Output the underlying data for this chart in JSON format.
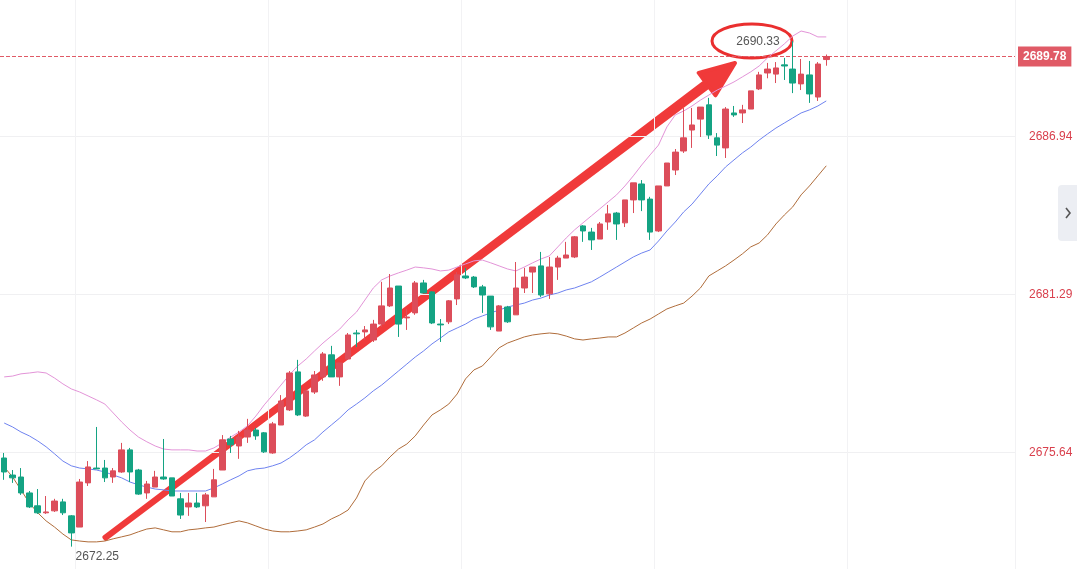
{
  "chart_data": {
    "type": "candlestick",
    "categories": [
      null,
      null,
      null,
      null,
      null,
      null,
      null,
      null,
      null,
      null,
      null,
      null,
      null,
      null,
      null,
      null,
      null,
      null,
      null,
      null,
      null,
      null,
      null,
      null,
      null,
      null,
      null,
      null,
      null,
      null,
      null,
      null,
      null,
      null,
      null,
      null,
      null,
      null,
      null,
      null,
      null,
      null,
      null,
      null,
      null,
      null,
      null,
      null,
      null,
      null,
      null,
      null,
      null,
      null,
      null,
      null,
      null,
      null,
      null,
      null,
      null,
      null,
      null,
      null,
      null,
      null,
      null,
      null,
      null,
      null,
      null,
      null,
      null,
      null,
      null,
      null,
      null,
      null,
      null,
      null,
      null,
      null,
      null,
      null,
      null,
      null,
      null,
      null,
      null,
      null,
      null,
      null,
      null,
      null,
      null,
      null,
      null,
      null,
      null
    ],
    "ohlc": [
      [
        2675.42,
        2675.6,
        2674.64,
        2674.92
      ],
      [
        2674.81,
        2674.99,
        2674.53,
        2674.71
      ],
      [
        2674.74,
        2675.06,
        2674.1,
        2674.17
      ],
      [
        2674.17,
        2674.24,
        2673.63,
        2673.67
      ],
      [
        2673.71,
        2674.31,
        2673.42,
        2673.46
      ],
      [
        2673.46,
        2674.06,
        2673.42,
        2673.49
      ],
      [
        2673.53,
        2673.96,
        2673.49,
        2673.88
      ],
      [
        2673.85,
        2673.96,
        2673.38,
        2673.46
      ],
      [
        2673.35,
        2673.38,
        2672.25,
        2672.74
      ],
      [
        2672.95,
        2674.67,
        2672.95,
        2674.56
      ],
      [
        2674.53,
        2675.31,
        2674.42,
        2675.1
      ],
      [
        2675.06,
        2676.53,
        2675.03,
        2675.03
      ],
      [
        2675.06,
        2675.35,
        2674.56,
        2674.71
      ],
      [
        2674.74,
        2675.06,
        2674.53,
        2674.96
      ],
      [
        2674.92,
        2675.96,
        2674.89,
        2675.71
      ],
      [
        2675.71,
        2675.78,
        2674.56,
        2674.92
      ],
      [
        2674.99,
        2675.03,
        2674.1,
        2674.13
      ],
      [
        2674.17,
        2674.6,
        2673.96,
        2674.49
      ],
      [
        2674.38,
        2674.96,
        2674.38,
        2674.74
      ],
      [
        2674.74,
        2676.1,
        2674.64,
        2674.67
      ],
      [
        2674.71,
        2674.71,
        2674.06,
        2674.06
      ],
      [
        2673.96,
        2674.17,
        2673.24,
        2673.38
      ],
      [
        2673.67,
        2674.17,
        2673.35,
        2673.81
      ],
      [
        2673.81,
        2674.17,
        2673.63,
        2673.67
      ],
      [
        2673.71,
        2674.17,
        2673.13,
        2674.1
      ],
      [
        2674.03,
        2675.03,
        2674.03,
        2674.64
      ],
      [
        2674.99,
        2676.24,
        2674.99,
        2676.07
      ],
      [
        2676.1,
        2676.21,
        2675.6,
        2675.89
      ],
      [
        2675.85,
        2676.39,
        2675.39,
        2676.17
      ],
      [
        2676.17,
        2676.82,
        2675.96,
        2676.42
      ],
      [
        2676.42,
        2676.5,
        2676.07,
        2676.21
      ],
      [
        2676.32,
        2676.35,
        2675.6,
        2675.64
      ],
      [
        2675.6,
        2676.71,
        2675.57,
        2676.64
      ],
      [
        2676.6,
        2677.67,
        2676.6,
        2677.46
      ],
      [
        2677.14,
        2678.53,
        2677.1,
        2678.46
      ],
      [
        2678.5,
        2678.93,
        2676.92,
        2676.96
      ],
      [
        2676.92,
        2677.85,
        2676.89,
        2677.82
      ],
      [
        2677.78,
        2678.53,
        2677.71,
        2678.39
      ],
      [
        2678.32,
        2679.21,
        2678.18,
        2679.14
      ],
      [
        2679.11,
        2679.43,
        2678.32,
        2678.32
      ],
      [
        2678.32,
        2678.82,
        2678.0,
        2678.82
      ],
      [
        2678.96,
        2679.89,
        2678.93,
        2679.82
      ],
      [
        2679.89,
        2680.0,
        2679.39,
        2679.86
      ],
      [
        2679.93,
        2680.14,
        2679.64,
        2680.0
      ],
      [
        2679.64,
        2680.36,
        2679.57,
        2680.21
      ],
      [
        2680.21,
        2681.72,
        2680.11,
        2680.86
      ],
      [
        2680.86,
        2682.0,
        2680.82,
        2681.5
      ],
      [
        2681.57,
        2681.57,
        2679.75,
        2680.21
      ],
      [
        2680.43,
        2680.75,
        2680.0,
        2680.46
      ],
      [
        2680.61,
        2681.75,
        2680.54,
        2681.68
      ],
      [
        2681.68,
        2681.79,
        2681.32,
        2681.32
      ],
      [
        2681.36,
        2681.39,
        2680.21,
        2680.25
      ],
      [
        2680.21,
        2680.39,
        2679.57,
        2680.18
      ],
      [
        2680.29,
        2681.07,
        2680.21,
        2681.04
      ],
      [
        2681.11,
        2682.07,
        2680.89,
        2681.97
      ],
      [
        2681.93,
        2682.22,
        2681.82,
        2681.86
      ],
      [
        2681.89,
        2681.93,
        2681.5,
        2681.54
      ],
      [
        2681.54,
        2681.61,
        2680.61,
        2681.25
      ],
      [
        2681.21,
        2681.21,
        2680.0,
        2680.11
      ],
      [
        2679.96,
        2680.89,
        2679.96,
        2680.86
      ],
      [
        2680.82,
        2680.86,
        2680.25,
        2680.29
      ],
      [
        2680.54,
        2682.43,
        2680.54,
        2681.5
      ],
      [
        2681.5,
        2682.22,
        2681.32,
        2681.89
      ],
      [
        2682.07,
        2682.25,
        2681.32,
        2682.25
      ],
      [
        2682.29,
        2682.79,
        2681.18,
        2681.25
      ],
      [
        2681.29,
        2682.61,
        2681.11,
        2682.25
      ],
      [
        2682.25,
        2682.65,
        2681.79,
        2682.57
      ],
      [
        2682.57,
        2683.15,
        2682.57,
        2682.68
      ],
      [
        2682.61,
        2683.36,
        2682.57,
        2683.33
      ],
      [
        2683.72,
        2683.75,
        2683.15,
        2683.54
      ],
      [
        2683.5,
        2683.65,
        2682.86,
        2683.22
      ],
      [
        2683.25,
        2683.86,
        2683.25,
        2683.79
      ],
      [
        2683.86,
        2684.47,
        2683.58,
        2684.15
      ],
      [
        2684.18,
        2684.22,
        2683.22,
        2683.79
      ],
      [
        2683.83,
        2684.65,
        2683.68,
        2684.65
      ],
      [
        2684.65,
        2685.26,
        2684.18,
        2685.26
      ],
      [
        2685.22,
        2685.36,
        2684.25,
        2684.65
      ],
      [
        2684.68,
        2684.76,
        2683.22,
        2683.5
      ],
      [
        2683.54,
        2685.15,
        2683.5,
        2685.15
      ],
      [
        2685.15,
        2685.97,
        2685.15,
        2685.97
      ],
      [
        2685.72,
        2686.47,
        2685.54,
        2686.36
      ],
      [
        2686.4,
        2687.94,
        2686.33,
        2686.87
      ],
      [
        2687.15,
        2687.94,
        2686.51,
        2687.33
      ],
      [
        2687.54,
        2687.97,
        2686.9,
        2687.97
      ],
      [
        2688.05,
        2688.3,
        2686.83,
        2686.97
      ],
      [
        2686.87,
        2687.04,
        2686.22,
        2686.61
      ],
      [
        2686.51,
        2687.97,
        2686.15,
        2687.9
      ],
      [
        2687.76,
        2688.01,
        2687.62,
        2687.69
      ],
      [
        2687.76,
        2688.05,
        2687.4,
        2687.87
      ],
      [
        2687.9,
        2688.55,
        2687.9,
        2688.55
      ],
      [
        2688.62,
        2689.23,
        2688.58,
        2689.12
      ],
      [
        2689.19,
        2689.55,
        2689.0,
        2689.33
      ],
      [
        2689.15,
        2689.58,
        2688.83,
        2689.37
      ],
      [
        2689.48,
        2689.73,
        2688.94,
        2689.44
      ],
      [
        2689.33,
        2690.33,
        2688.47,
        2688.83
      ],
      [
        2688.8,
        2689.69,
        2688.58,
        2689.15
      ],
      [
        2689.12,
        2689.62,
        2688.12,
        2688.44
      ],
      [
        2688.33,
        2689.58,
        2688.19,
        2689.51
      ],
      [
        2689.67,
        2689.85,
        2689.45,
        2689.78
      ]
    ],
    "colors": [
      "#14a383",
      "#14a383",
      "#14a383",
      "#14a383",
      "#14a383",
      "#dc4d5a",
      "#dc4d5a",
      "#14a383",
      "#14a383",
      "#dc4d5a",
      "#dc4d5a",
      "#14a383",
      "#14a383",
      "#dc4d5a",
      "#dc4d5a",
      "#14a383",
      "#14a383",
      "#dc4d5a",
      "#dc4d5a",
      "#14a383",
      "#14a383",
      "#14a383",
      "#dc4d5a",
      "#14a383",
      "#dc4d5a",
      "#dc4d5a",
      "#dc4d5a",
      "#14a383",
      "#dc4d5a",
      "#dc4d5a",
      "#14a383",
      "#14a383",
      "#dc4d5a",
      "#dc4d5a",
      "#dc4d5a",
      "#14a383",
      "#dc4d5a",
      "#dc4d5a",
      "#dc4d5a",
      "#14a383",
      "#dc4d5a",
      "#dc4d5a",
      "#14a383",
      "#dc4d5a",
      "#dc4d5a",
      "#dc4d5a",
      "#dc4d5a",
      "#14a383",
      "#dc4d5a",
      "#dc4d5a",
      "#14a383",
      "#14a383",
      "#14a383",
      "#dc4d5a",
      "#dc4d5a",
      "#14a383",
      "#14a383",
      "#14a383",
      "#14a383",
      "#dc4d5a",
      "#14a383",
      "#dc4d5a",
      "#dc4d5a",
      "#dc4d5a",
      "#14a383",
      "#dc4d5a",
      "#dc4d5a",
      "#dc4d5a",
      "#dc4d5a",
      "#14a383",
      "#14a383",
      "#dc4d5a",
      "#dc4d5a",
      "#14a383",
      "#dc4d5a",
      "#dc4d5a",
      "#14a383",
      "#14a383",
      "#dc4d5a",
      "#dc4d5a",
      "#dc4d5a",
      "#dc4d5a",
      "#dc4d5a",
      "#dc4d5a",
      "#14a383",
      "#14a383",
      "#dc4d5a",
      "#14a383",
      "#dc4d5a",
      "#dc4d5a",
      "#dc4d5a",
      "#dc4d5a",
      "#dc4d5a",
      "#14a383",
      "#14a383",
      "#dc4d5a",
      "#14a383",
      "#dc4d5a",
      "#dc4d5a"
    ],
    "series": [
      {
        "type": "line",
        "color": "#e394d8",
        "values": [
          2678.32,
          2678.35,
          2678.43,
          2678.46,
          2678.5,
          2678.46,
          2678.28,
          2678.07,
          2677.89,
          2677.78,
          2677.64,
          2677.5,
          2677.35,
          2677.03,
          2676.71,
          2676.42,
          2676.17,
          2676.0,
          2675.85,
          2675.74,
          2675.71,
          2675.71,
          2675.71,
          2675.67,
          2675.67,
          2675.78,
          2675.96,
          2676.17,
          2676.35,
          2676.57,
          2676.92,
          2677.32,
          2677.67,
          2678.03,
          2678.39,
          2678.71,
          2678.96,
          2679.25,
          2679.53,
          2679.78,
          2680.03,
          2680.36,
          2680.64,
          2681.07,
          2681.5,
          2681.79,
          2681.93,
          2682.04,
          2682.14,
          2682.25,
          2682.22,
          2682.18,
          2682.11,
          2682.14,
          2682.25,
          2682.36,
          2682.47,
          2682.5,
          2682.4,
          2682.29,
          2682.18,
          2682.11,
          2682.25,
          2682.4,
          2682.54,
          2682.65,
          2682.97,
          2683.29,
          2683.58,
          2683.83,
          2684.08,
          2684.33,
          2684.58,
          2684.83,
          2685.15,
          2685.51,
          2685.9,
          2686.26,
          2686.61,
          2687.26,
          2687.69,
          2687.83,
          2688.01,
          2688.22,
          2688.4,
          2688.58,
          2688.72,
          2688.87,
          2689.05,
          2689.23,
          2689.44,
          2689.73,
          2689.98,
          2690.23,
          2690.51,
          2690.69,
          2690.62,
          2690.48,
          2690.48
        ]
      },
      {
        "type": "line",
        "color": "#6f83f0",
        "values": [
          2676.67,
          2676.53,
          2676.35,
          2676.21,
          2676.03,
          2675.82,
          2675.57,
          2675.31,
          2675.14,
          2675.06,
          2675.03,
          2674.99,
          2674.92,
          2674.81,
          2674.71,
          2674.56,
          2674.46,
          2674.38,
          2674.31,
          2674.28,
          2674.24,
          2674.24,
          2674.24,
          2674.24,
          2674.24,
          2674.35,
          2674.49,
          2674.64,
          2674.78,
          2674.96,
          2675.03,
          2675.06,
          2675.14,
          2675.24,
          2675.42,
          2675.64,
          2675.89,
          2676.07,
          2676.35,
          2676.6,
          2676.85,
          2677.14,
          2677.35,
          2677.57,
          2677.82,
          2678.03,
          2678.28,
          2678.53,
          2678.78,
          2679.03,
          2679.25,
          2679.5,
          2679.71,
          2679.93,
          2680.07,
          2680.21,
          2680.39,
          2680.5,
          2680.61,
          2680.71,
          2680.82,
          2680.89,
          2680.96,
          2681.07,
          2681.14,
          2681.25,
          2681.32,
          2681.43,
          2681.5,
          2681.61,
          2681.72,
          2681.89,
          2682.07,
          2682.25,
          2682.43,
          2682.61,
          2682.75,
          2682.86,
          2683.18,
          2683.54,
          2683.86,
          2684.22,
          2684.5,
          2684.86,
          2685.22,
          2685.51,
          2685.83,
          2686.08,
          2686.33,
          2686.54,
          2686.79,
          2687.01,
          2687.22,
          2687.4,
          2687.58,
          2687.76,
          2687.87,
          2688.01,
          2688.19
        ]
      },
      {
        "type": "line",
        "color": "#b06d3b",
        "values": [
          2675.1,
          2674.74,
          2674.28,
          2673.81,
          2673.46,
          2673.17,
          2672.95,
          2672.7,
          2672.49,
          2672.45,
          2672.42,
          2672.42,
          2672.45,
          2672.53,
          2672.6,
          2672.67,
          2672.78,
          2672.88,
          2672.92,
          2672.85,
          2672.78,
          2672.78,
          2672.85,
          2672.88,
          2672.92,
          2672.95,
          2673.03,
          2673.1,
          2673.17,
          2673.1,
          2672.99,
          2672.88,
          2672.81,
          2672.78,
          2672.78,
          2672.81,
          2672.85,
          2672.95,
          2673.06,
          2673.24,
          2673.38,
          2673.56,
          2673.99,
          2674.6,
          2674.92,
          2675.14,
          2675.46,
          2675.74,
          2675.92,
          2676.21,
          2676.6,
          2676.96,
          2677.14,
          2677.35,
          2677.71,
          2678.25,
          2678.57,
          2678.71,
          2679.03,
          2679.36,
          2679.53,
          2679.64,
          2679.75,
          2679.82,
          2679.86,
          2679.89,
          2679.86,
          2679.78,
          2679.68,
          2679.64,
          2679.68,
          2679.71,
          2679.75,
          2679.75,
          2679.89,
          2680.07,
          2680.25,
          2680.39,
          2680.57,
          2680.75,
          2680.86,
          2680.96,
          2681.21,
          2681.5,
          2681.93,
          2682.11,
          2682.29,
          2682.5,
          2682.72,
          2682.97,
          2683.11,
          2683.4,
          2683.79,
          2684.11,
          2684.4,
          2684.83,
          2685.15,
          2685.51,
          2685.87
        ]
      }
    ],
    "ylim": [
      2671.45,
      2691.8
    ],
    "yticks": [
      2675.64,
      2681.29,
      2686.94
    ],
    "tick_labels": "y",
    "grid": true,
    "ref_lines": [
      {
        "axis": "y",
        "value": 2689.78,
        "label": "2689.78",
        "color": "#e05a66",
        "line_style": "dashed"
      }
    ],
    "annotations": [
      "2690.33",
      "2672.25"
    ]
  }
}
